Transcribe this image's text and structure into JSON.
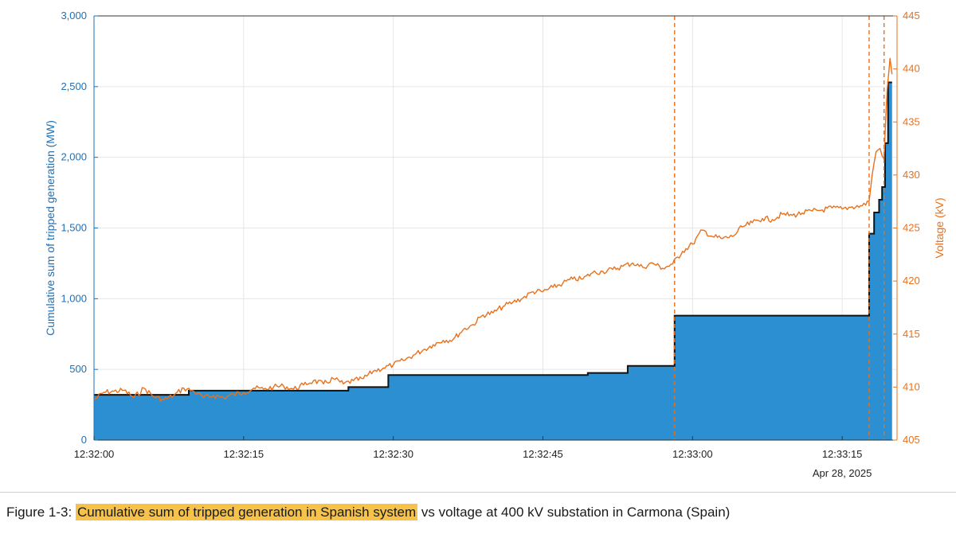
{
  "colors": {
    "fill": "#2b8fd1",
    "step_line": "#111111",
    "voltage": "#e8711c",
    "left_axis": "#1f6fb5",
    "right_axis": "#e8711c",
    "grid": "#e6e6e6",
    "highlight": "#f6c24a"
  },
  "caption": {
    "prefix": "Figure 1-3:",
    "highlight": "Cumulative sum of tripped generation in Spanish system",
    "suffix": "vs voltage at 400 kV substation in Carmona (Spain)"
  },
  "chart_data": {
    "type": "line",
    "title": "",
    "xlabel": "",
    "x_unit": "time",
    "x_tick_labels": [
      "12:32:00",
      "12:32:15",
      "12:32:30",
      "12:32:45",
      "12:33:00",
      "12:33:15"
    ],
    "x_tick_values": [
      "12:32:00",
      "12:32:15",
      "12:32:30",
      "12:32:45",
      "12:33:00",
      "12:33:15"
    ],
    "xlim": [
      "12:32:00",
      "12:33:20.5"
    ],
    "date_label": "Apr 28, 2025",
    "y_left": {
      "label": "Cumulative sum of tripped generation (MW)",
      "lim": [
        0,
        3000
      ],
      "tick_labels": [
        "0",
        "500",
        "1,000",
        "1,500",
        "2,000",
        "2,500",
        "3,000"
      ],
      "tick_values": [
        0,
        500,
        1000,
        1500,
        2000,
        2500,
        3000
      ]
    },
    "y_right": {
      "label": "Voltage (kV)",
      "lim": [
        405,
        445
      ],
      "tick_labels": [
        "405",
        "410",
        "415",
        "420",
        "425",
        "430",
        "435",
        "440",
        "445"
      ],
      "tick_values": [
        405,
        410,
        415,
        420,
        425,
        430,
        435,
        440,
        445
      ]
    },
    "grid": true,
    "vertical_markers": [
      "12:32:58.2",
      "12:33:17.7",
      "12:33:19.2"
    ],
    "series": [
      {
        "axis": "left",
        "style": "step-area",
        "points": [
          [
            "12:32:00",
            320
          ],
          [
            "12:32:09.5",
            350
          ],
          [
            "12:32:25.5",
            375
          ],
          [
            "12:32:29.5",
            460
          ],
          [
            "12:32:49.5",
            475
          ],
          [
            "12:32:53.5",
            525
          ],
          [
            "12:32:58.2",
            880
          ],
          [
            "12:33:17.7",
            1460
          ],
          [
            "12:33:18.2",
            1610
          ],
          [
            "12:33:18.7",
            1700
          ],
          [
            "12:33:19.0",
            1790
          ],
          [
            "12:33:19.3",
            2100
          ],
          [
            "12:33:19.6",
            2530
          ],
          [
            "12:33:20.0",
            2530
          ]
        ]
      },
      {
        "axis": "right",
        "style": "line",
        "points": [
          [
            "12:32:00",
            408.8
          ],
          [
            "12:32:01",
            409.5
          ],
          [
            "12:32:02",
            409.6
          ],
          [
            "12:32:03",
            409.7
          ],
          [
            "12:32:04",
            409.0
          ],
          [
            "12:32:05",
            409.9
          ],
          [
            "12:32:06",
            409.1
          ],
          [
            "12:32:07",
            408.8
          ],
          [
            "12:32:08",
            409.2
          ],
          [
            "12:32:09",
            409.9
          ],
          [
            "12:32:10",
            409.6
          ],
          [
            "12:32:11",
            409.0
          ],
          [
            "12:32:12",
            409.2
          ],
          [
            "12:32:13",
            409.0
          ],
          [
            "12:32:14",
            409.3
          ],
          [
            "12:32:15",
            409.5
          ],
          [
            "12:32:16",
            409.9
          ],
          [
            "12:32:17",
            409.8
          ],
          [
            "12:32:18",
            410.0
          ],
          [
            "12:32:19",
            410.1
          ],
          [
            "12:32:20",
            409.8
          ],
          [
            "12:32:21",
            410.2
          ],
          [
            "12:32:22",
            410.6
          ],
          [
            "12:32:23",
            410.3
          ],
          [
            "12:32:24",
            410.8
          ],
          [
            "12:32:25",
            410.3
          ],
          [
            "12:32:26",
            410.6
          ],
          [
            "12:32:27",
            410.8
          ],
          [
            "12:32:28",
            411.5
          ],
          [
            "12:32:29",
            411.8
          ],
          [
            "12:32:30",
            412.1
          ],
          [
            "12:32:31",
            412.5
          ],
          [
            "12:32:32",
            413.0
          ],
          [
            "12:32:33",
            413.5
          ],
          [
            "12:32:34",
            414.0
          ],
          [
            "12:32:35",
            414.4
          ],
          [
            "12:32:36",
            414.5
          ],
          [
            "12:32:37",
            415.4
          ],
          [
            "12:32:38",
            415.9
          ],
          [
            "12:32:39",
            416.8
          ],
          [
            "12:32:40",
            417.0
          ],
          [
            "12:32:41",
            417.6
          ],
          [
            "12:32:42",
            418.0
          ],
          [
            "12:32:43",
            418.4
          ],
          [
            "12:32:44",
            419.0
          ],
          [
            "12:32:45",
            419.0
          ],
          [
            "12:32:46",
            419.4
          ],
          [
            "12:32:47",
            419.8
          ],
          [
            "12:32:48",
            420.2
          ],
          [
            "12:32:49",
            420.2
          ],
          [
            "12:32:50",
            420.8
          ],
          [
            "12:32:51",
            420.9
          ],
          [
            "12:32:52",
            421.1
          ],
          [
            "12:32:53",
            421.4
          ],
          [
            "12:32:54",
            421.7
          ],
          [
            "12:32:55",
            421.3
          ],
          [
            "12:32:56",
            421.7
          ],
          [
            "12:32:57",
            421.2
          ],
          [
            "12:32:58",
            421.6
          ],
          [
            "12:32:59",
            422.8
          ],
          [
            "12:33:00",
            423.5
          ],
          [
            "12:33:01",
            424.8
          ],
          [
            "12:33:02",
            424.2
          ],
          [
            "12:33:03",
            424.0
          ],
          [
            "12:33:04",
            424.2
          ],
          [
            "12:33:05",
            425.1
          ],
          [
            "12:33:06",
            425.5
          ],
          [
            "12:33:07",
            425.9
          ],
          [
            "12:33:08",
            425.8
          ],
          [
            "12:33:09",
            426.3
          ],
          [
            "12:33:10",
            426.2
          ],
          [
            "12:33:11",
            426.4
          ],
          [
            "12:33:12",
            426.6
          ],
          [
            "12:33:13",
            426.7
          ],
          [
            "12:33:14",
            426.9
          ],
          [
            "12:33:15",
            426.8
          ],
          [
            "12:33:16",
            427.0
          ],
          [
            "12:33:17",
            427.1
          ],
          [
            "12:33:17.7",
            427.5
          ],
          [
            "12:33:18",
            430.0
          ],
          [
            "12:33:18.4",
            432.2
          ],
          [
            "12:33:18.8",
            432.5
          ],
          [
            "12:33:19.2",
            431.5
          ],
          [
            "12:33:19.5",
            438.0
          ],
          [
            "12:33:19.8",
            441.0
          ],
          [
            "12:33:20",
            439.5
          ]
        ]
      }
    ]
  }
}
